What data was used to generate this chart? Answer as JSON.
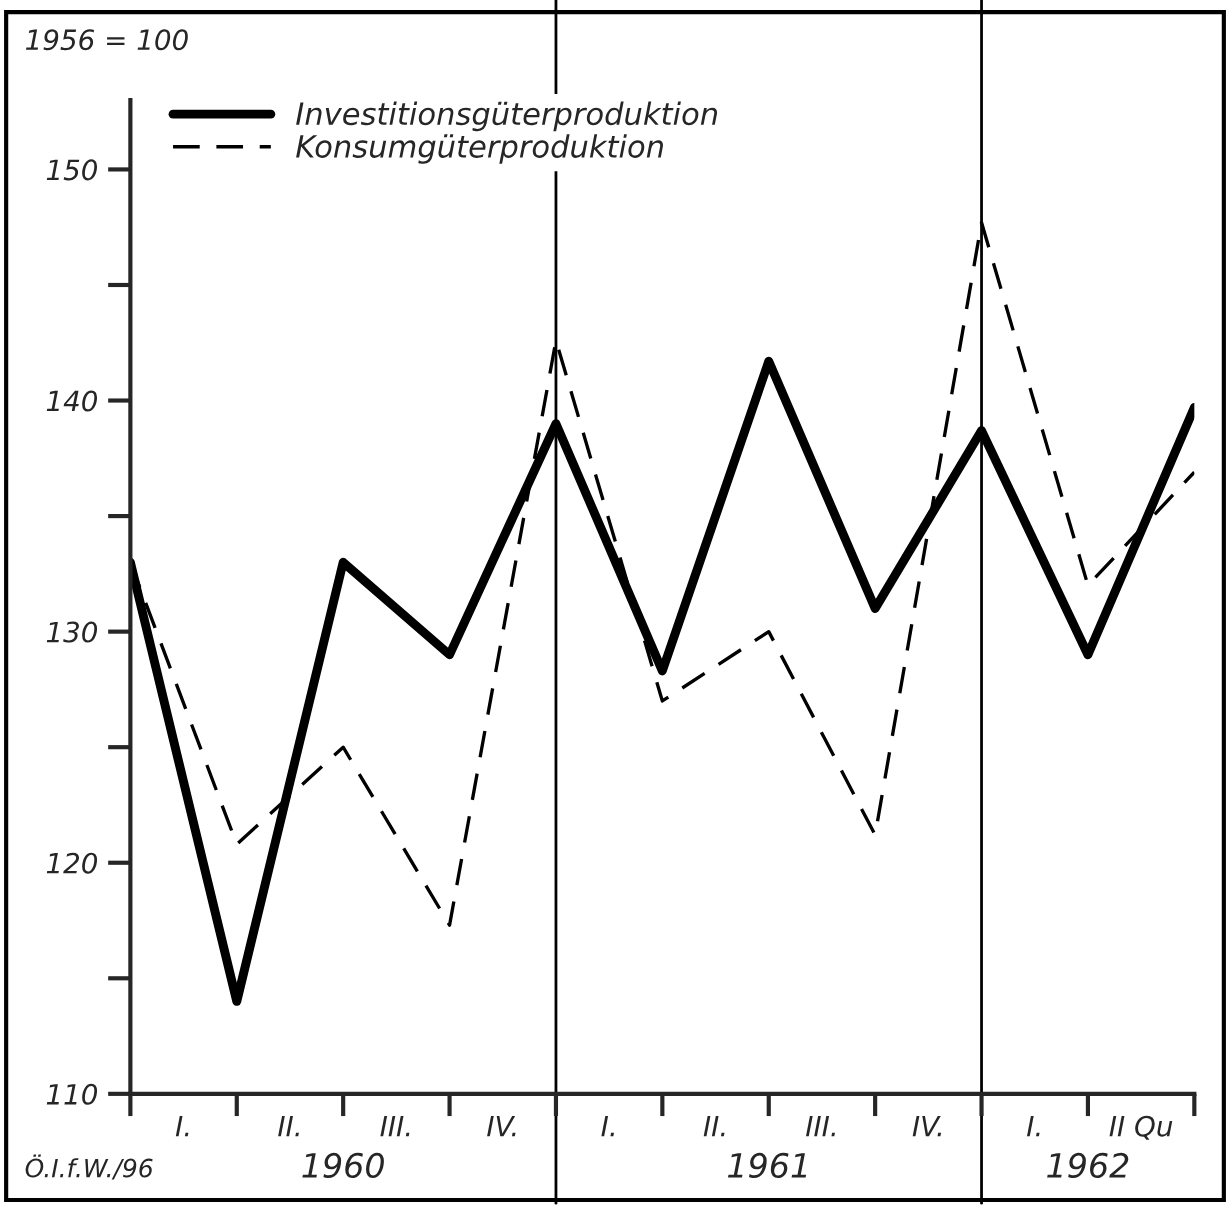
{
  "chart_data": {
    "type": "line",
    "categories": [
      null,
      null,
      null,
      null,
      null,
      null,
      null,
      null,
      null,
      null,
      null
    ],
    "series": [
      {
        "name": "Investitionsgüterproduktion",
        "color": "#000000",
        "line_style": "solid",
        "values": [
          133,
          114,
          133,
          129,
          139,
          128.3,
          141.7,
          131,
          138.7,
          129,
          139.7
        ]
      },
      {
        "name": "Konsumgüterproduktion",
        "color": "#000000",
        "line_style": "dashed",
        "values": [
          133,
          120.8,
          125,
          117.3,
          142.6,
          127,
          130,
          121.2,
          147.7,
          132,
          136.9
        ]
      }
    ],
    "ylim": [
      110,
      153
    ],
    "yticks": [
      110,
      {
        "value": 115,
        "label": null
      },
      120,
      {
        "value": 125,
        "label": null
      },
      130,
      {
        "value": 135,
        "label": null
      },
      140,
      {
        "value": 145,
        "label": null
      },
      150
    ],
    "annotations": [
      "1956 = 100",
      "Ö.I.f.W./96",
      "1960",
      "1961",
      "1962",
      "I.",
      "II.",
      "III.",
      "IV.",
      "I.",
      "II.",
      "III.",
      "IV.",
      "I.",
      "II Qu"
    ],
    "legend": "top left",
    "grid": false,
    "marker": "none"
  }
}
